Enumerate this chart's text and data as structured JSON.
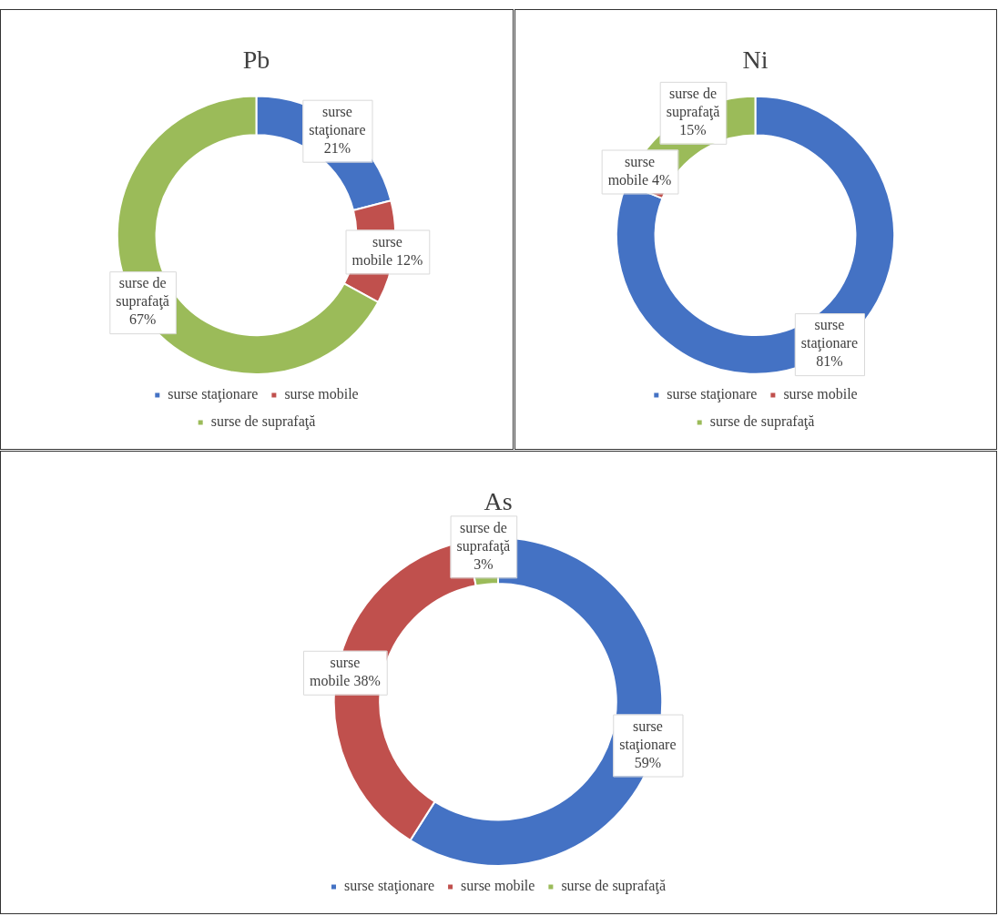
{
  "chart_data": [
    {
      "type": "donut",
      "title": "Pb",
      "categories": [
        "surse staţionare",
        "surse mobile",
        "surse de suprafaţă"
      ],
      "values": [
        21,
        12,
        67
      ],
      "colors": [
        "#4472c4",
        "#c0504d",
        "#9bbb59"
      ],
      "value_labels": [
        "surse staţionare 21%",
        "surse mobile 12%",
        "surse de suprafaţă 67%"
      ],
      "legend": "bottom"
    },
    {
      "type": "donut",
      "title": "Ni",
      "categories": [
        "surse staţionare",
        "surse mobile",
        "surse de suprafaţă"
      ],
      "values": [
        81,
        4,
        15
      ],
      "colors": [
        "#4472c4",
        "#c0504d",
        "#9bbb59"
      ],
      "value_labels": [
        "surse staţionare 81%",
        "surse mobile 4%",
        "surse de suprafaţă 15%"
      ],
      "legend": "bottom"
    },
    {
      "type": "donut",
      "title": "As",
      "categories": [
        "surse staţionare",
        "surse mobile",
        "surse de suprafaţă"
      ],
      "values": [
        59,
        38,
        3
      ],
      "colors": [
        "#4472c4",
        "#c0504d",
        "#9bbb59"
      ],
      "value_labels": [
        "surse staţionare 59%",
        "surse mobile 38%",
        "surse de suprafaţă 3%"
      ],
      "legend": "bottom"
    }
  ]
}
